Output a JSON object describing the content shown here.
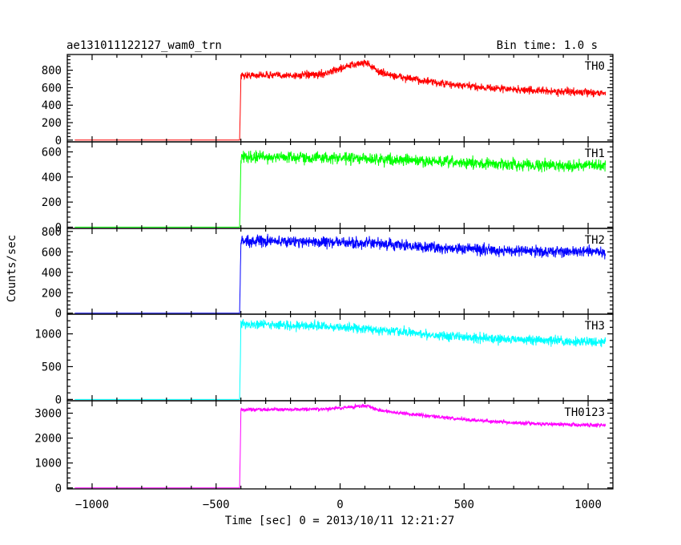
{
  "chart_data": {
    "type": "line",
    "title": "ae131011122127_wam0_trn",
    "subtitle": "Bin time: 1.0 s",
    "xlabel": "Time [sec] 0 = 2013/10/11 12:21:27",
    "ylabel": "Counts/sec",
    "xlim": [
      -1100,
      1100
    ],
    "x_ticks": [
      -1000,
      -500,
      0,
      500,
      1000
    ],
    "x_tick_labels": [
      "−1000",
      "−500",
      "0",
      "500",
      "1000"
    ],
    "grid": false,
    "panels": [
      {
        "label": "TH0",
        "color": "#ff0000",
        "ylim": [
          -20,
          980
        ],
        "y_ticks": [
          0,
          200,
          400,
          600,
          800
        ],
        "x": [
          -1070,
          -410,
          -405,
          -400,
          -300,
          -200,
          -100,
          -50,
          0,
          50,
          100,
          110,
          150,
          200,
          300,
          400,
          500,
          600,
          700,
          800,
          900,
          1000,
          1070
        ],
        "y": [
          0,
          0,
          0,
          740,
          745,
          740,
          745,
          770,
          820,
          860,
          890,
          880,
          790,
          745,
          695,
          650,
          620,
          600,
          580,
          565,
          555,
          545,
          540
        ],
        "noise": 30
      },
      {
        "label": "TH1",
        "color": "#00ff00",
        "ylim": [
          -10,
          680
        ],
        "y_ticks": [
          0,
          200,
          400,
          600
        ],
        "x": [
          -1070,
          -410,
          -405,
          -400,
          -300,
          -100,
          0,
          100,
          200,
          400,
          600,
          800,
          1000,
          1070
        ],
        "y": [
          0,
          0,
          0,
          560,
          560,
          555,
          550,
          545,
          540,
          520,
          505,
          495,
          490,
          490
        ],
        "noise": 32
      },
      {
        "label": "TH2",
        "color": "#0000ff",
        "ylim": [
          -10,
          830
        ],
        "y_ticks": [
          0,
          200,
          400,
          600,
          800
        ],
        "x": [
          -1070,
          -410,
          -405,
          -400,
          -300,
          -100,
          0,
          100,
          200,
          400,
          600,
          800,
          1000,
          1070
        ],
        "y": [
          0,
          0,
          0,
          710,
          705,
          700,
          690,
          685,
          670,
          640,
          620,
          605,
          600,
          600
        ],
        "noise": 38
      },
      {
        "label": "TH3",
        "color": "#00ffff",
        "ylim": [
          -20,
          1300
        ],
        "y_ticks": [
          0,
          500,
          1000
        ],
        "x": [
          -1070,
          -410,
          -405,
          -400,
          -300,
          -100,
          0,
          100,
          200,
          400,
          600,
          800,
          1000,
          1070
        ],
        "y": [
          0,
          0,
          0,
          1150,
          1140,
          1120,
          1100,
          1080,
          1040,
          980,
          930,
          900,
          880,
          880
        ],
        "noise": 50
      },
      {
        "label": "TH0123",
        "color": "#ff00ff",
        "ylim": [
          -40,
          3500
        ],
        "y_ticks": [
          0,
          1000,
          2000,
          3000
        ],
        "x": [
          -1070,
          -410,
          -405,
          -400,
          -300,
          -100,
          0,
          50,
          100,
          120,
          150,
          200,
          300,
          400,
          500,
          600,
          700,
          800,
          900,
          1000,
          1070
        ],
        "y": [
          0,
          0,
          0,
          3150,
          3150,
          3150,
          3200,
          3260,
          3300,
          3280,
          3130,
          3050,
          2950,
          2850,
          2750,
          2680,
          2620,
          2580,
          2550,
          2530,
          2520
        ],
        "noise": 55
      }
    ]
  }
}
